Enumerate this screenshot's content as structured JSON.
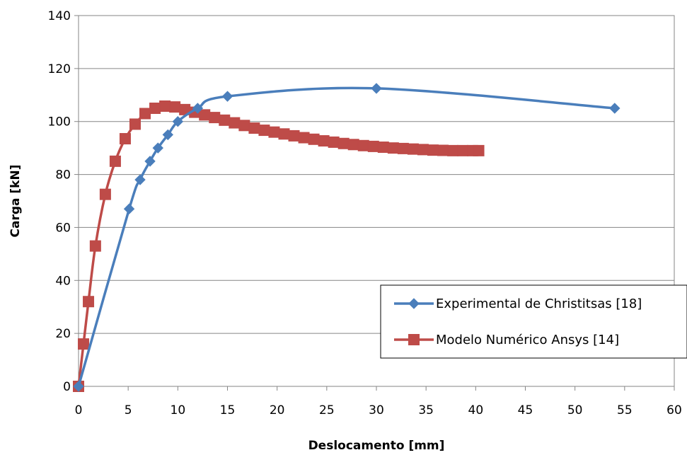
{
  "chart_data": {
    "type": "line",
    "title": "",
    "xlabel": "Deslocamento [mm]",
    "ylabel": "Carga [kN]",
    "xlim": [
      0,
      60
    ],
    "ylim": [
      0,
      140
    ],
    "xticks": [
      0,
      5,
      10,
      15,
      20,
      25,
      30,
      35,
      40,
      45,
      50,
      55,
      60
    ],
    "yticks": [
      0,
      20,
      40,
      60,
      80,
      100,
      120,
      140
    ],
    "grid": "horizontal",
    "legend_position": "bottom-right",
    "series": [
      {
        "name": "Experimental de Christitsas [18]",
        "color": "#4a7ebb",
        "marker": "diamond",
        "smooth": true,
        "x": [
          0,
          5.1,
          6.2,
          7.2,
          8.0,
          9.0,
          10.0,
          12.0,
          15.0,
          30.0,
          54.0
        ],
        "y": [
          0,
          67,
          78,
          85,
          90,
          95,
          100,
          105,
          109.5,
          112.5,
          105
        ]
      },
      {
        "name": "Modelo Numérico Ansys [14]",
        "color": "#be4b48",
        "marker": "square",
        "smooth": true,
        "x": [
          0,
          0.5,
          1.0,
          1.7,
          2.7,
          3.7,
          4.7,
          5.7,
          6.7,
          7.7,
          8.7,
          9.7,
          10.7,
          11.7,
          12.7,
          13.7,
          14.7,
          15.7,
          16.7,
          17.7,
          18.7,
          19.7,
          20.7,
          21.7,
          22.7,
          23.7,
          24.7,
          25.7,
          26.7,
          27.7,
          28.7,
          29.7,
          30.7,
          31.7,
          32.7,
          33.7,
          34.7,
          35.7,
          36.7,
          37.7,
          38.7,
          39.7,
          40.3
        ],
        "y": [
          0,
          16,
          32,
          53,
          72.5,
          85,
          93.5,
          99,
          103,
          105,
          105.8,
          105.5,
          104.5,
          103.5,
          102.5,
          101.5,
          100.5,
          99.5,
          98.5,
          97.5,
          96.7,
          96.0,
          95.3,
          94.6,
          93.9,
          93.3,
          92.7,
          92.2,
          91.7,
          91.3,
          90.9,
          90.6,
          90.3,
          90.0,
          89.8,
          89.6,
          89.4,
          89.2,
          89.1,
          89.0,
          89.0,
          89.0,
          89.0
        ]
      }
    ]
  }
}
